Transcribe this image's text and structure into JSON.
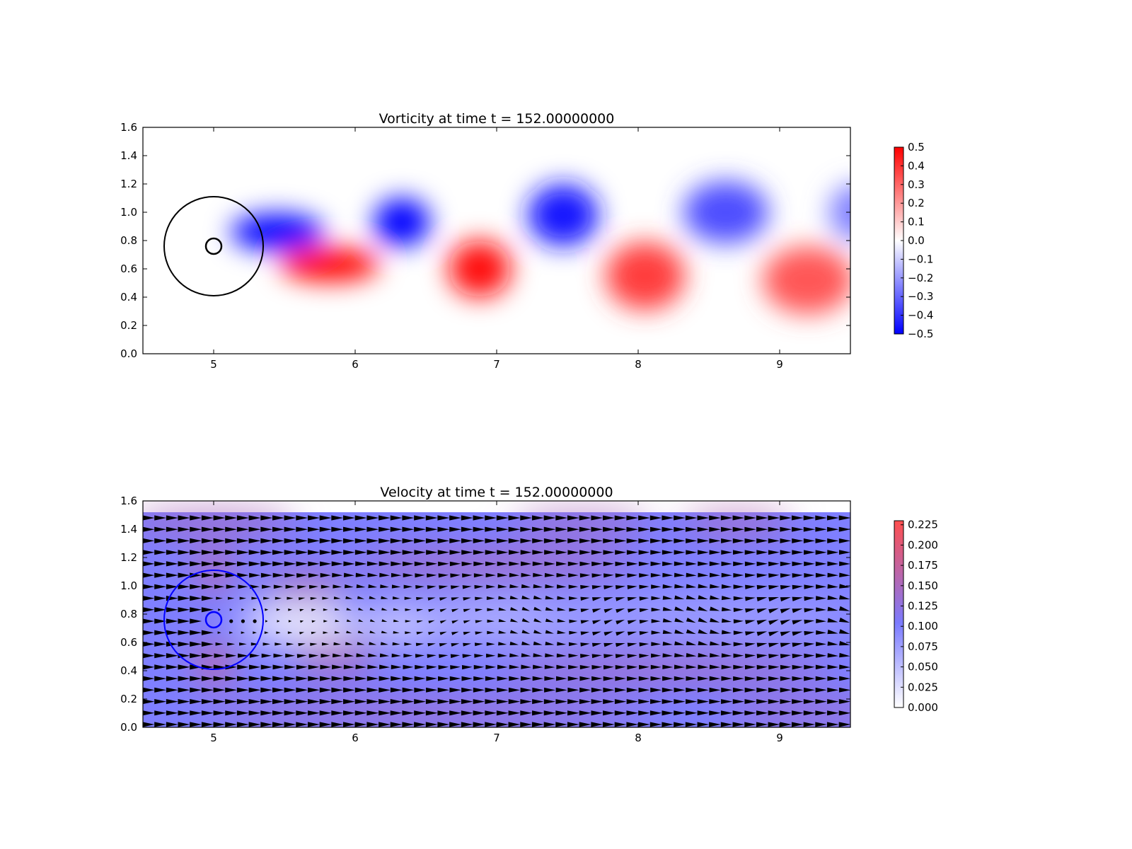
{
  "chart_data": [
    {
      "type": "heatmap",
      "title": "Vorticity at time t =   152.00000000",
      "xlabel": "",
      "ylabel": "",
      "xlim": [
        4.5,
        9.5
      ],
      "ylim": [
        0.0,
        1.6
      ],
      "xticks": [
        "5",
        "6",
        "7",
        "8",
        "9"
      ],
      "yticks": [
        "0.0",
        "0.2",
        "0.4",
        "0.6",
        "0.8",
        "1.0",
        "1.2",
        "1.4",
        "1.6"
      ],
      "colormap": "bwr",
      "colorbar": {
        "min": -0.5,
        "max": 0.5,
        "ticks": [
          "−0.5",
          "−0.4",
          "−0.3",
          "−0.2",
          "−0.1",
          "0.0",
          "0.1",
          "0.2",
          "0.3",
          "0.4",
          "0.5"
        ],
        "low_color": "#0000ff",
        "mid_color": "#ffffff",
        "high_color": "#ff0000"
      },
      "vortices": [
        {
          "x": 5.45,
          "y": 0.86,
          "value": -0.5,
          "rx": 0.33,
          "ry": 0.13
        },
        {
          "x": 5.82,
          "y": 0.63,
          "value": 0.5,
          "rx": 0.35,
          "ry": 0.12
        },
        {
          "x": 6.33,
          "y": 0.93,
          "value": -0.5,
          "rx": 0.2,
          "ry": 0.17
        },
        {
          "x": 6.88,
          "y": 0.6,
          "value": 0.48,
          "rx": 0.22,
          "ry": 0.2
        },
        {
          "x": 7.47,
          "y": 0.98,
          "value": -0.45,
          "rx": 0.25,
          "ry": 0.22
        },
        {
          "x": 8.05,
          "y": 0.55,
          "value": 0.38,
          "rx": 0.28,
          "ry": 0.24
        },
        {
          "x": 8.62,
          "y": 1.0,
          "value": -0.35,
          "rx": 0.3,
          "ry": 0.22
        },
        {
          "x": 9.2,
          "y": 0.52,
          "value": 0.33,
          "rx": 0.32,
          "ry": 0.24
        },
        {
          "x": 9.55,
          "y": 1.0,
          "value": -0.25,
          "rx": 0.2,
          "ry": 0.2
        }
      ],
      "circles": [
        {
          "cx": 5.0,
          "cy": 0.76,
          "r": 0.35,
          "color": "#000000"
        },
        {
          "cx": 5.0,
          "cy": 0.76,
          "r": 0.055,
          "color": "#000000"
        }
      ]
    },
    {
      "type": "heatmap",
      "title": "Velocity at time t =   152.00000000",
      "xlabel": "",
      "ylabel": "",
      "xlim": [
        4.5,
        9.5
      ],
      "ylim": [
        0.0,
        1.6
      ],
      "xticks": [
        "5",
        "6",
        "7",
        "8",
        "9"
      ],
      "yticks": [
        "0.0",
        "0.2",
        "0.4",
        "0.6",
        "0.8",
        "1.0",
        "1.2",
        "1.4",
        "1.6"
      ],
      "data_ylim": [
        0.0,
        1.52
      ],
      "colorbar": {
        "min": 0.0,
        "max": 0.23,
        "ticks": [
          "0.000",
          "0.025",
          "0.050",
          "0.075",
          "0.100",
          "0.125",
          "0.150",
          "0.175",
          "0.200",
          "0.225"
        ],
        "low_color": "#ffffff",
        "mid_color": "#7b7bff",
        "high_color": "#ff4f4f"
      },
      "base_speed": 0.1,
      "speed_regions": [
        {
          "x": 5.0,
          "y": 0.45,
          "value": 0.18,
          "rx": 0.12,
          "ry": 0.14
        },
        {
          "x": 5.0,
          "y": 1.1,
          "value": 0.17,
          "rx": 0.12,
          "ry": 0.14
        },
        {
          "x": 5.65,
          "y": 1.0,
          "value": 0.15,
          "rx": 0.3,
          "ry": 0.1
        },
        {
          "x": 5.85,
          "y": 0.5,
          "value": 0.16,
          "rx": 0.3,
          "ry": 0.1
        },
        {
          "x": 7.0,
          "y": 1.15,
          "value": 0.145,
          "rx": 1.0,
          "ry": 0.1
        },
        {
          "x": 8.2,
          "y": 0.42,
          "value": 0.14,
          "rx": 1.2,
          "ry": 0.1
        },
        {
          "x": 5.0,
          "y": 1.45,
          "value": 0.15,
          "rx": 0.6,
          "ry": 0.08
        },
        {
          "x": 7.6,
          "y": 1.45,
          "value": 0.15,
          "rx": 0.5,
          "ry": 0.07
        },
        {
          "x": 8.7,
          "y": 1.45,
          "value": 0.155,
          "rx": 0.4,
          "ry": 0.07
        },
        {
          "x": 6.5,
          "y": 0.1,
          "value": 0.14,
          "rx": 1.6,
          "ry": 0.08
        },
        {
          "x": 9.2,
          "y": 0.1,
          "value": 0.14,
          "rx": 0.6,
          "ry": 0.08
        },
        {
          "x": 5.6,
          "y": 0.74,
          "value": 0.005,
          "rx": 0.42,
          "ry": 0.14
        },
        {
          "x": 6.35,
          "y": 0.73,
          "value": 0.03,
          "rx": 0.35,
          "ry": 0.12
        },
        {
          "x": 7.1,
          "y": 0.76,
          "value": 0.06,
          "rx": 0.7,
          "ry": 0.15
        },
        {
          "x": 8.4,
          "y": 0.78,
          "value": 0.075,
          "rx": 1.2,
          "ry": 0.15
        }
      ],
      "circles": [
        {
          "cx": 5.0,
          "cy": 0.76,
          "r": 0.35,
          "color": "#0000ff"
        },
        {
          "cx": 5.0,
          "cy": 0.76,
          "r": 0.055,
          "color": "#0000ff"
        }
      ]
    }
  ]
}
